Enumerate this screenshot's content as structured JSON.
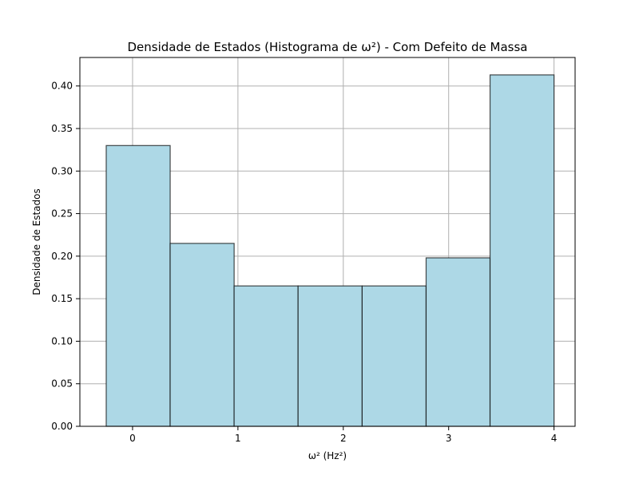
{
  "chart_data": {
    "type": "bar",
    "title": "Densidade de Estados (Histograma de ω²) - Com Defeito de Massa",
    "xlabel": "ω² (Hz²)",
    "ylabel": "Densidade de Estados",
    "xlim": [
      -0.5,
      4.2
    ],
    "ylim": [
      0,
      0.4335
    ],
    "xticks": [
      0,
      1,
      2,
      3,
      4
    ],
    "xtick_labels": [
      "0",
      "1",
      "2",
      "3",
      "4"
    ],
    "yticks": [
      0,
      0.05,
      0.1,
      0.15,
      0.2,
      0.25,
      0.3,
      0.35,
      0.4
    ],
    "ytick_labels": [
      "0.00",
      "0.05",
      "0.10",
      "0.15",
      "0.20",
      "0.25",
      "0.30",
      "0.35",
      "0.40"
    ],
    "grid": true,
    "bin_edges": [
      -0.25,
      0.357,
      0.964,
      1.571,
      2.179,
      2.786,
      3.393,
      4.0
    ],
    "values": [
      0.33,
      0.215,
      0.165,
      0.165,
      0.165,
      0.198,
      0.413
    ],
    "colors": {
      "bar_fill": "#add8e6",
      "bar_edge": "#000000",
      "grid": "#b0b0b0"
    }
  }
}
